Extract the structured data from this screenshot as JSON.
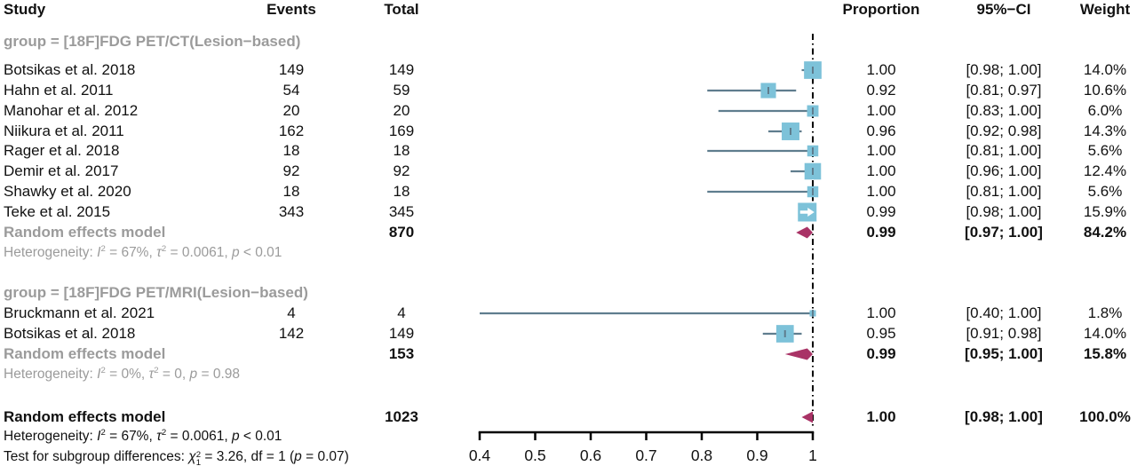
{
  "header": {
    "study": "Study",
    "events": "Events",
    "total": "Total",
    "proportion": "Proportion",
    "ci": "95%−CI",
    "weight": "Weight"
  },
  "colors": {
    "square": "#7dc2d9",
    "ci_line": "#5f7d8e",
    "diamond": "#a93366",
    "gray_text": "#9b9b9b",
    "black_text": "#111111",
    "refline": "#000000",
    "arrow": "#ffffff"
  },
  "chart_data": {
    "type": "forest",
    "x_axis": {
      "min": 0.4,
      "max": 1.0,
      "tick_values": [
        0.4,
        0.5,
        0.6,
        0.7,
        0.8,
        0.9,
        1.0
      ],
      "tick_labels": [
        "0.4",
        "0.5",
        "0.6",
        "0.7",
        "0.8",
        "0.9",
        "1"
      ],
      "reference_line": 1.0
    },
    "groups": [
      {
        "label": "group = [18F]FDG PET/CT(Lesion−based)",
        "studies": [
          {
            "study": "Botsikas et al. 2018",
            "events": "149",
            "total": "149",
            "proportion": "1.00",
            "ci": "[0.98; 1.00]",
            "weight": "14.0%",
            "est": 1.0,
            "lo": 0.98,
            "hi": 1.0,
            "w": 14.0
          },
          {
            "study": "Hahn et al. 2011",
            "events": "54",
            "total": "59",
            "proportion": "0.92",
            "ci": "[0.81; 0.97]",
            "weight": "10.6%",
            "est": 0.92,
            "lo": 0.81,
            "hi": 0.97,
            "w": 10.6
          },
          {
            "study": "Manohar et al. 2012",
            "events": "20",
            "total": "20",
            "proportion": "1.00",
            "ci": "[0.83; 1.00]",
            "weight": "6.0%",
            "est": 1.0,
            "lo": 0.83,
            "hi": 1.0,
            "w": 6.0
          },
          {
            "study": "Niikura et al. 2011",
            "events": "162",
            "total": "169",
            "proportion": "0.96",
            "ci": "[0.92; 0.98]",
            "weight": "14.3%",
            "est": 0.96,
            "lo": 0.92,
            "hi": 0.98,
            "w": 14.3
          },
          {
            "study": "Rager et al. 2018",
            "events": "18",
            "total": "18",
            "proportion": "1.00",
            "ci": "[0.81; 1.00]",
            "weight": "5.6%",
            "est": 1.0,
            "lo": 0.81,
            "hi": 1.0,
            "w": 5.6
          },
          {
            "study": "Demir et al. 2017",
            "events": "92",
            "total": "92",
            "proportion": "1.00",
            "ci": "[0.96; 1.00]",
            "weight": "12.4%",
            "est": 1.0,
            "lo": 0.96,
            "hi": 1.0,
            "w": 12.4
          },
          {
            "study": "Shawky et al. 2020",
            "events": "18",
            "total": "18",
            "proportion": "1.00",
            "ci": "[0.81; 1.00]",
            "weight": "5.6%",
            "est": 1.0,
            "lo": 0.81,
            "hi": 1.0,
            "w": 5.6
          },
          {
            "study": "Teke et al. 2015",
            "events": "343",
            "total": "345",
            "proportion": "0.99",
            "ci": "[0.98; 1.00]",
            "weight": "15.9%",
            "est": 0.99,
            "lo": 0.98,
            "hi": 1.0,
            "w": 15.9,
            "marker": "arrow"
          }
        ],
        "summary": {
          "label": "Random effects model",
          "total": "870",
          "proportion": "0.99",
          "ci": "[0.97; 1.00]",
          "weight": "84.2%",
          "est": 0.99,
          "lo": 0.97,
          "hi": 1.0
        },
        "heterogeneity": [
          {
            "t": "Heterogeneity: "
          },
          {
            "t": "I",
            "italic": true
          },
          {
            "t": "2",
            "sup": true
          },
          {
            "t": " = 67%, "
          },
          {
            "t": "τ",
            "italic": true
          },
          {
            "t": "2",
            "sup": true
          },
          {
            "t": " = 0.0061, "
          },
          {
            "t": "p",
            "italic": true
          },
          {
            "t": " < 0.01"
          }
        ]
      },
      {
        "label": "group = [18F]FDG PET/MRI(Lesion−based)",
        "studies": [
          {
            "study": "Bruckmann et al. 2021",
            "events": "4",
            "total": "4",
            "proportion": "1.00",
            "ci": "[0.40; 1.00]",
            "weight": "1.8%",
            "est": 1.0,
            "lo": 0.4,
            "hi": 1.0,
            "w": 1.8
          },
          {
            "study": "Botsikas et al. 2018",
            "events": "142",
            "total": "149",
            "proportion": "0.95",
            "ci": "[0.91; 0.98]",
            "weight": "14.0%",
            "est": 0.95,
            "lo": 0.91,
            "hi": 0.98,
            "w": 14.0
          }
        ],
        "summary": {
          "label": "Random effects model",
          "total": "153",
          "proportion": "0.99",
          "ci": "[0.95; 1.00]",
          "weight": "15.8%",
          "est": 0.99,
          "lo": 0.95,
          "hi": 1.0
        },
        "heterogeneity": [
          {
            "t": "Heterogeneity: "
          },
          {
            "t": "I",
            "italic": true
          },
          {
            "t": "2",
            "sup": true
          },
          {
            "t": " = 0%, "
          },
          {
            "t": "τ",
            "italic": true
          },
          {
            "t": "2",
            "sup": true
          },
          {
            "t": " = 0, "
          },
          {
            "t": "p",
            "italic": true
          },
          {
            "t": " = 0.98"
          }
        ]
      }
    ],
    "overall": {
      "label": "Random effects model",
      "total": "1023",
      "proportion": "1.00",
      "ci": "[0.98; 1.00]",
      "weight": "100.0%",
      "est": 1.0,
      "lo": 0.98,
      "hi": 1.0
    },
    "overall_heterogeneity": [
      {
        "t": "Heterogeneity: "
      },
      {
        "t": "I",
        "italic": true
      },
      {
        "t": "2",
        "sup": true
      },
      {
        "t": " = 67%, "
      },
      {
        "t": "τ",
        "italic": true
      },
      {
        "t": "2",
        "sup": true
      },
      {
        "t": " = 0.0061, "
      },
      {
        "t": "p",
        "italic": true
      },
      {
        "t": " < 0.01"
      }
    ],
    "subgroup_test": [
      {
        "t": "Test for subgroup differences: "
      },
      {
        "t": "χ",
        "italic": true
      },
      {
        "stack": {
          "sup": "2",
          "sub": "1"
        }
      },
      {
        "t": " = 3.26, df = 1 ("
      },
      {
        "t": "p",
        "italic": true
      },
      {
        "t": " = 0.07)"
      }
    ]
  }
}
